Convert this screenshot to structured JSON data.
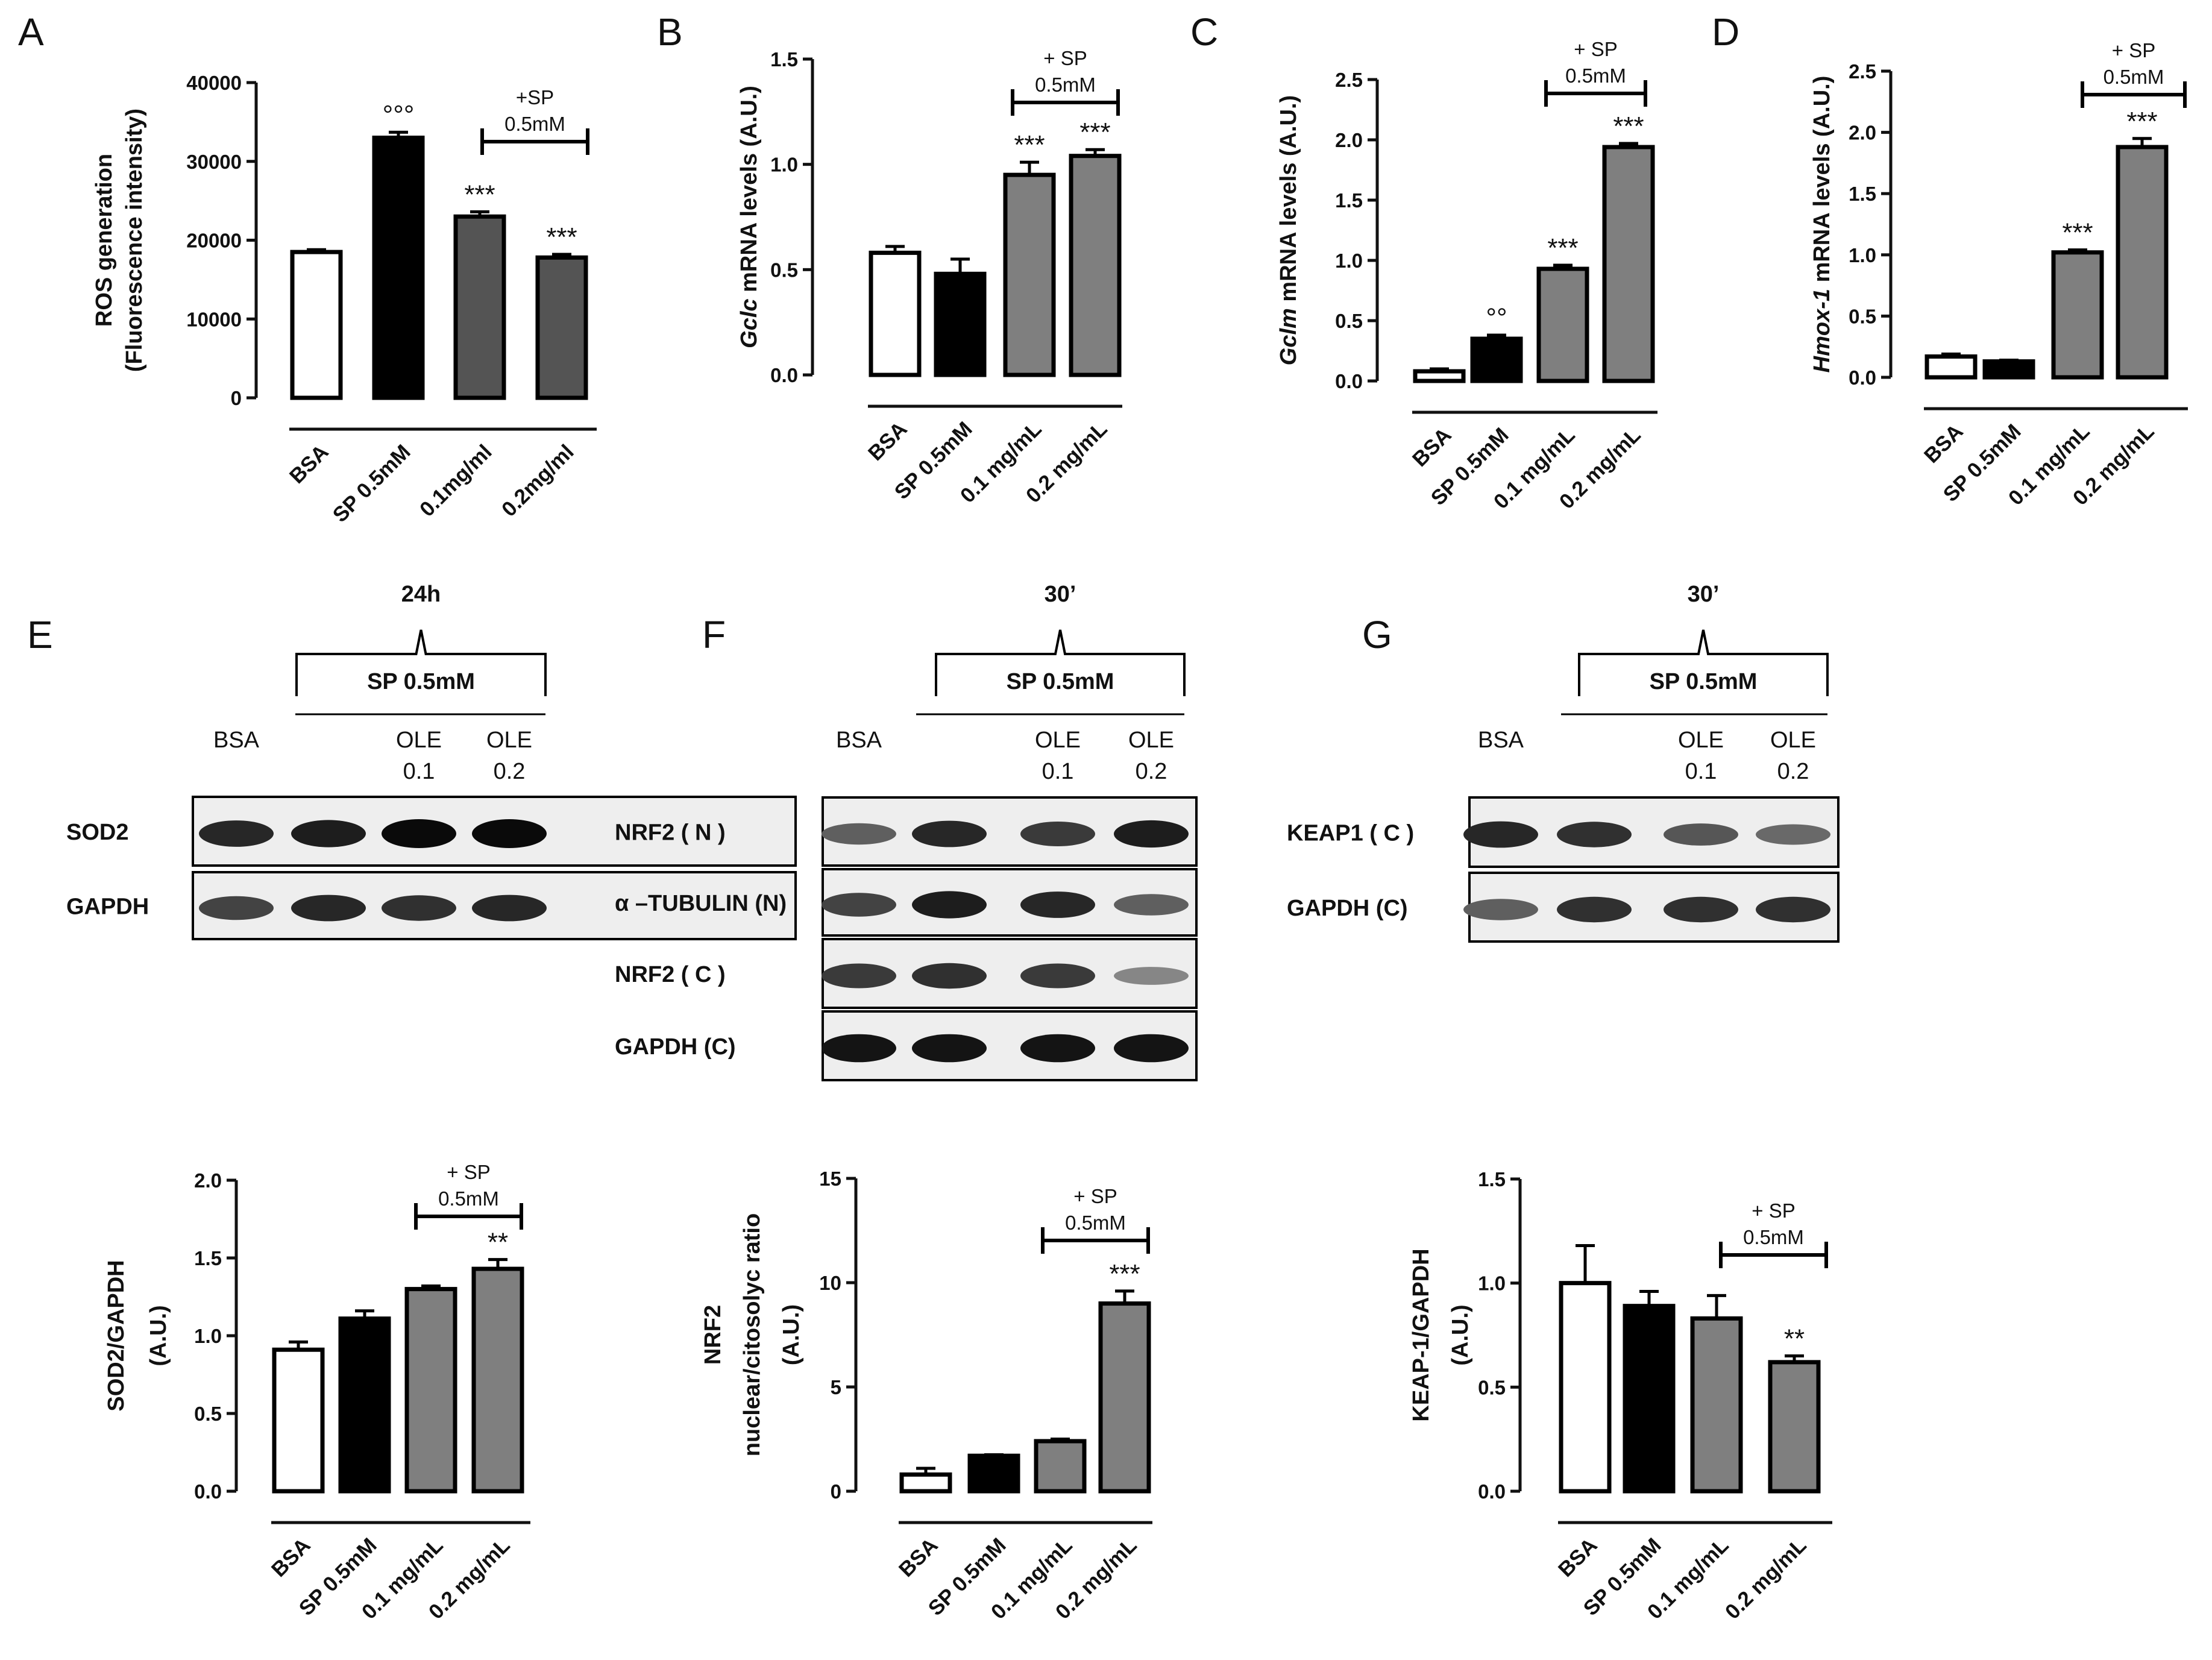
{
  "panels": [
    {
      "id": "A",
      "type": "bar",
      "ylabel_lines": [
        "ROS generation",
        "(Fluorescence intensity)"
      ],
      "categories": [
        "BSA",
        "SP 0.5mM",
        "0.1mg/ml",
        "0.2mg/ml"
      ],
      "values": [
        18500,
        33000,
        23000,
        17800
      ],
      "errors": [
        300,
        700,
        600,
        400
      ],
      "colors": [
        "#ffffff",
        "#000000",
        "#545454",
        "#545454"
      ],
      "ylim": [
        0,
        40000
      ],
      "yticks": [
        "0",
        "10000",
        "20000",
        "30000",
        "40000"
      ],
      "annotations": [
        "",
        "°°°",
        "***",
        "***"
      ],
      "bracket_lines": [
        "+SP",
        "0.5mM"
      ]
    },
    {
      "id": "B",
      "type": "bar",
      "ylabel_lines": [
        "Gclc mRNA levels (A.U.)"
      ],
      "ylabel_italic": "Gclc",
      "categories": [
        "BSA",
        "SP 0.5mM",
        "0.1 mg/mL",
        "0.2 mg/mL"
      ],
      "values": [
        0.58,
        0.48,
        0.95,
        1.04
      ],
      "errors": [
        0.03,
        0.07,
        0.06,
        0.03
      ],
      "colors": [
        "#ffffff",
        "#000000",
        "#7f7f7f",
        "#7f7f7f"
      ],
      "ylim": [
        0,
        1.5
      ],
      "yticks": [
        "0.0",
        "0.5",
        "1.0",
        "1.5"
      ],
      "annotations": [
        "",
        "",
        "***",
        "***"
      ],
      "bracket_lines": [
        "+ SP",
        "0.5mM"
      ]
    },
    {
      "id": "C",
      "type": "bar",
      "ylabel_lines": [
        "Gclm mRNA levels (A.U.)"
      ],
      "ylabel_italic": "Gclm",
      "categories": [
        "BSA",
        "SP 0.5mM",
        "0.1 mg/mL",
        "0.2 mg/mL"
      ],
      "values": [
        0.08,
        0.35,
        0.93,
        1.94
      ],
      "errors": [
        0.02,
        0.03,
        0.03,
        0.03
      ],
      "colors": [
        "#ffffff",
        "#000000",
        "#7f7f7f",
        "#7f7f7f"
      ],
      "ylim": [
        0,
        2.5
      ],
      "yticks": [
        "0.0",
        "0.5",
        "1.0",
        "1.5",
        "2.0",
        "2.5"
      ],
      "annotations": [
        "",
        "°°",
        "***",
        "***"
      ],
      "bracket_lines": [
        "+ SP",
        "0.5mM"
      ]
    },
    {
      "id": "D",
      "type": "bar",
      "ylabel_lines": [
        "Hmox-1 mRNA levels (A.U.)"
      ],
      "ylabel_italic": "Hmox-1",
      "categories": [
        "BSA",
        "SP 0.5mM",
        "0.1 mg/mL",
        "0.2 mg/mL"
      ],
      "values": [
        0.17,
        0.13,
        1.02,
        1.88
      ],
      "errors": [
        0.02,
        0.01,
        0.02,
        0.07
      ],
      "colors": [
        "#ffffff",
        "#000000",
        "#7f7f7f",
        "#7f7f7f"
      ],
      "ylim": [
        0,
        2.5
      ],
      "yticks": [
        "0.0",
        "0.5",
        "1.0",
        "1.5",
        "2.0",
        "2.5"
      ],
      "annotations": [
        "",
        "",
        "***",
        "***"
      ],
      "bracket_lines": [
        "+ SP",
        "0.5mM"
      ]
    },
    {
      "id": "E-quant",
      "type": "bar",
      "ylabel_lines": [
        "SOD2/GAPDH",
        "(A.U.)"
      ],
      "categories": [
        "BSA",
        "SP 0.5mM",
        "0.1 mg/mL",
        "0.2 mg/mL"
      ],
      "values": [
        0.91,
        1.11,
        1.3,
        1.43
      ],
      "errors": [
        0.05,
        0.05,
        0.02,
        0.06
      ],
      "colors": [
        "#ffffff",
        "#000000",
        "#7f7f7f",
        "#7f7f7f"
      ],
      "ylim": [
        0,
        2.0
      ],
      "yticks": [
        "0.0",
        "0.5",
        "1.0",
        "1.5",
        "2.0"
      ],
      "annotations": [
        "",
        "",
        "",
        "**"
      ],
      "bracket_lines": [
        "+ SP",
        "0.5mM"
      ]
    },
    {
      "id": "F-quant",
      "type": "bar",
      "ylabel_lines": [
        "NRF2",
        "nuclear/citosolyc ratio",
        "(A.U.)"
      ],
      "categories": [
        "BSA",
        "SP 0.5mM",
        "0.1 mg/mL",
        "0.2 mg/mL"
      ],
      "values": [
        0.8,
        1.7,
        2.4,
        9.0
      ],
      "errors": [
        0.3,
        0.05,
        0.1,
        0.6
      ],
      "colors": [
        "#ffffff",
        "#000000",
        "#7f7f7f",
        "#7f7f7f"
      ],
      "ylim": [
        0,
        15
      ],
      "yticks": [
        "0",
        "5",
        "10",
        "15"
      ],
      "annotations": [
        "",
        "",
        "",
        "***"
      ],
      "bracket_lines": [
        "+ SP",
        "0.5mM"
      ]
    },
    {
      "id": "G-quant",
      "type": "bar",
      "ylabel_lines": [
        "KEAP-1/GAPDH",
        "(A.U.)"
      ],
      "categories": [
        "BSA",
        "SP 0.5mM",
        "0.1 mg/mL",
        "0.2 mg/mL"
      ],
      "values": [
        1.0,
        0.89,
        0.83,
        0.62
      ],
      "errors": [
        0.18,
        0.07,
        0.11,
        0.03
      ],
      "colors": [
        "#ffffff",
        "#000000",
        "#7f7f7f",
        "#7f7f7f"
      ],
      "ylim": [
        0,
        1.5
      ],
      "yticks": [
        "0.0",
        "0.5",
        "1.0",
        "1.5"
      ],
      "annotations": [
        "",
        "",
        "",
        "**"
      ],
      "bracket_lines": [
        "+ SP",
        "0.5mM"
      ]
    }
  ],
  "blots": {
    "E": {
      "time": "24h",
      "treatment": "SP 0.5mM",
      "lanes": [
        "BSA",
        "",
        "OLE\n0.1",
        "OLE\n0.2"
      ],
      "rows": [
        "SOD2",
        "GAPDH"
      ]
    },
    "F": {
      "time": "30’",
      "treatment": "SP 0.5mM",
      "lanes": [
        "BSA",
        "",
        "OLE\n0.1",
        "OLE\n0.2"
      ],
      "rows": [
        "NRF2 ( N )",
        "α –TUBULIN (N)",
        "NRF2 ( C )",
        "GAPDH (C)"
      ]
    },
    "G": {
      "time": "30’",
      "treatment": "SP 0.5mM",
      "lanes": [
        "BSA",
        "",
        "OLE\n0.1",
        "OLE\n0.2"
      ],
      "rows": [
        "KEAP1 ( C )",
        "GAPDH (C)"
      ]
    }
  },
  "panel_letters": [
    "A",
    "B",
    "C",
    "D",
    "E",
    "F",
    "G"
  ],
  "chart_data": [
    {
      "type": "bar",
      "title": "A",
      "categories": [
        "BSA",
        "SP 0.5mM",
        "0.1mg/ml",
        "0.2mg/ml"
      ],
      "values": [
        18500,
        33000,
        23000,
        17800
      ],
      "ylabel": "ROS generation (Fluorescence intensity)",
      "ylim": [
        0,
        40000
      ]
    },
    {
      "type": "bar",
      "title": "B",
      "categories": [
        "BSA",
        "SP 0.5mM",
        "0.1 mg/mL",
        "0.2 mg/mL"
      ],
      "values": [
        0.58,
        0.48,
        0.95,
        1.04
      ],
      "ylabel": "Gclc mRNA levels (A.U.)",
      "ylim": [
        0,
        1.5
      ]
    },
    {
      "type": "bar",
      "title": "C",
      "categories": [
        "BSA",
        "SP 0.5mM",
        "0.1 mg/mL",
        "0.2 mg/mL"
      ],
      "values": [
        0.08,
        0.35,
        0.93,
        1.94
      ],
      "ylabel": "Gclm mRNA levels (A.U.)",
      "ylim": [
        0,
        2.5
      ]
    },
    {
      "type": "bar",
      "title": "D",
      "categories": [
        "BSA",
        "SP 0.5mM",
        "0.1 mg/mL",
        "0.2 mg/mL"
      ],
      "values": [
        0.17,
        0.13,
        1.02,
        1.88
      ],
      "ylabel": "Hmox-1 mRNA levels (A.U.)",
      "ylim": [
        0,
        2.5
      ]
    },
    {
      "type": "bar",
      "title": "E",
      "categories": [
        "BSA",
        "SP 0.5mM",
        "0.1 mg/mL",
        "0.2 mg/mL"
      ],
      "values": [
        0.91,
        1.11,
        1.3,
        1.43
      ],
      "ylabel": "SOD2/GAPDH (A.U.)",
      "ylim": [
        0,
        2.0
      ]
    },
    {
      "type": "bar",
      "title": "F",
      "categories": [
        "BSA",
        "SP 0.5mM",
        "0.1 mg/mL",
        "0.2 mg/mL"
      ],
      "values": [
        0.8,
        1.7,
        2.4,
        9.0
      ],
      "ylabel": "NRF2 nuclear/citosolyc ratio (A.U.)",
      "ylim": [
        0,
        15
      ]
    },
    {
      "type": "bar",
      "title": "G",
      "categories": [
        "BSA",
        "SP 0.5mM",
        "0.1 mg/mL",
        "0.2 mg/mL"
      ],
      "values": [
        1.0,
        0.89,
        0.83,
        0.62
      ],
      "ylabel": "KEAP-1/GAPDH (A.U.)",
      "ylim": [
        0,
        1.5
      ]
    }
  ]
}
